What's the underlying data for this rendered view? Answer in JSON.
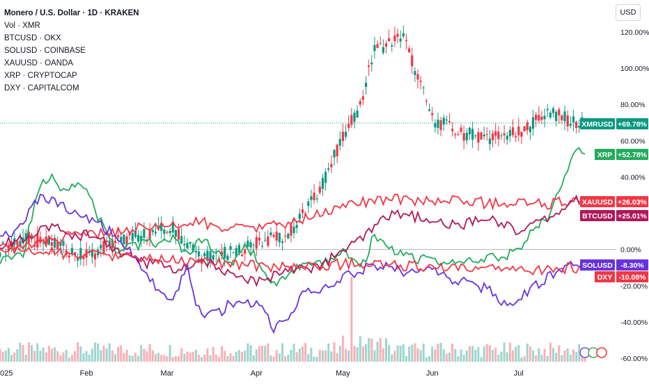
{
  "header": {
    "main_symbol": "Monero / U.S. Dollar · 1D · KRAKEN",
    "volume_label": "Vol · XMR",
    "overlays": [
      "BTCUSD · OKX",
      "SOLUSD · COINBASE",
      "XAUUSD · OANDA",
      "XRP · CRYPTOCAP",
      "DXY · CAPITALCOM"
    ]
  },
  "currency_button": "USD",
  "chart_data": {
    "type": "line",
    "title": "Monero / U.S. Dollar · 1D · KRAKEN",
    "xlabel": "",
    "ylabel": "",
    "x_tick_labels": [
      "2025",
      "Feb",
      "Mar",
      "Apr",
      "May",
      "Jun",
      "Jul"
    ],
    "y_tick_labels": [
      "120.00%",
      "100.00%",
      "80.00%",
      "60.00%",
      "40.00%",
      "20.00%",
      "0.00%",
      "-20.00%",
      "-40.00%",
      "-60.00%"
    ],
    "ylim": [
      -60,
      130
    ],
    "y_scale": "percent change",
    "grid": false,
    "legend": "top-left",
    "end_labels": [
      {
        "symbol": "XMRUSD",
        "value": "+69.78%",
        "color": "#089981"
      },
      {
        "symbol": "XRP",
        "value": "+52.78%",
        "color": "#22ab5c"
      },
      {
        "symbol": "XAUUSD",
        "value": "+26.03%",
        "color": "#f23645"
      },
      {
        "symbol": "BTCUSD",
        "value": "+25.01%",
        "color": "#b0175a"
      },
      {
        "symbol": "SOLUSD",
        "value": "-8.30%",
        "color": "#6633dd"
      },
      {
        "symbol": "DXY",
        "value": "-10.08%",
        "color": "#f23645"
      }
    ],
    "series": [
      {
        "name": "XMRUSD",
        "type": "candlestick",
        "color_up": "#089981",
        "color_down": "#f23645",
        "x": [
          0,
          10,
          20,
          30,
          40,
          50,
          60,
          70,
          80,
          90,
          100,
          110,
          118,
          120,
          125,
          130,
          140,
          150,
          160,
          170,
          180,
          190,
          200
        ],
        "values": [
          0,
          6,
          2,
          -4,
          4,
          8,
          12,
          -4,
          -2,
          4,
          8,
          30,
          58,
          64,
          80,
          110,
          118,
          72,
          64,
          62,
          64,
          76,
          69.78
        ]
      },
      {
        "name": "XRP",
        "color": "#22ab5c",
        "x": [
          0,
          8,
          14,
          18,
          22,
          28,
          35,
          40,
          50,
          60,
          65,
          70,
          80,
          86,
          95,
          100,
          112,
          120,
          125,
          130,
          135,
          145,
          160,
          170,
          178,
          185,
          190,
          195,
          200,
          203
        ],
        "values": [
          -5,
          -2,
          35,
          42,
          33,
          38,
          15,
          0,
          3,
          5,
          -2,
          5,
          -8,
          2,
          -20,
          -12,
          -8,
          0,
          -12,
          8,
          0,
          -5,
          -8,
          -5,
          -2,
          10,
          18,
          36,
          54,
          52.78
        ]
      },
      {
        "name": "XAUUSD",
        "color": "#f23645",
        "x": [
          0,
          10,
          20,
          30,
          40,
          50,
          60,
          70,
          80,
          90,
          100,
          110,
          120,
          130,
          140,
          150,
          160,
          170,
          180,
          190,
          200,
          203
        ],
        "values": [
          3,
          2,
          6,
          8,
          10,
          12,
          13,
          15,
          11,
          12,
          14,
          19,
          24,
          27,
          28,
          26,
          28,
          25,
          26,
          25,
          27,
          26.03
        ]
      },
      {
        "name": "BTCUSD",
        "color": "#b0175a",
        "x": [
          0,
          10,
          18,
          25,
          30,
          40,
          50,
          55,
          60,
          65,
          70,
          80,
          90,
          95,
          100,
          110,
          115,
          120,
          125,
          130,
          135,
          140,
          150,
          160,
          170,
          180,
          190,
          200,
          203
        ],
        "values": [
          2,
          8,
          14,
          5,
          10,
          0,
          -8,
          -6,
          -12,
          -10,
          -5,
          -15,
          -18,
          -14,
          -10,
          -10,
          -5,
          0,
          5,
          12,
          18,
          20,
          15,
          13,
          18,
          10,
          17,
          27,
          25.01
        ]
      },
      {
        "name": "SOLUSD",
        "color": "#6633dd",
        "x": [
          0,
          8,
          14,
          20,
          25,
          30,
          40,
          50,
          55,
          60,
          65,
          68,
          70,
          75,
          80,
          90,
          95,
          100,
          105,
          110,
          120,
          130,
          140,
          150,
          160,
          165,
          170,
          175,
          180,
          190,
          195,
          200,
          203
        ],
        "values": [
          5,
          14,
          30,
          25,
          20,
          18,
          8,
          -10,
          -25,
          -30,
          -8,
          -30,
          -35,
          -36,
          -30,
          -30,
          -43,
          -40,
          -22,
          -25,
          -15,
          -8,
          -12,
          -12,
          -18,
          -20,
          -22,
          -30,
          -28,
          -15,
          -10,
          -8,
          -8.3
        ]
      },
      {
        "name": "DXY",
        "color": "#f23645",
        "x": [
          0,
          10,
          20,
          30,
          40,
          50,
          60,
          70,
          80,
          90,
          100,
          110,
          120,
          130,
          140,
          150,
          160,
          170,
          180,
          190,
          200,
          203
        ],
        "values": [
          0,
          -1,
          -2,
          -3,
          -4,
          -5,
          -6,
          -7,
          -8,
          -9,
          -10,
          -9,
          -8,
          -8,
          -9,
          -10,
          -11,
          -11,
          -12,
          -11,
          -10,
          -10.08
        ]
      }
    ]
  }
}
